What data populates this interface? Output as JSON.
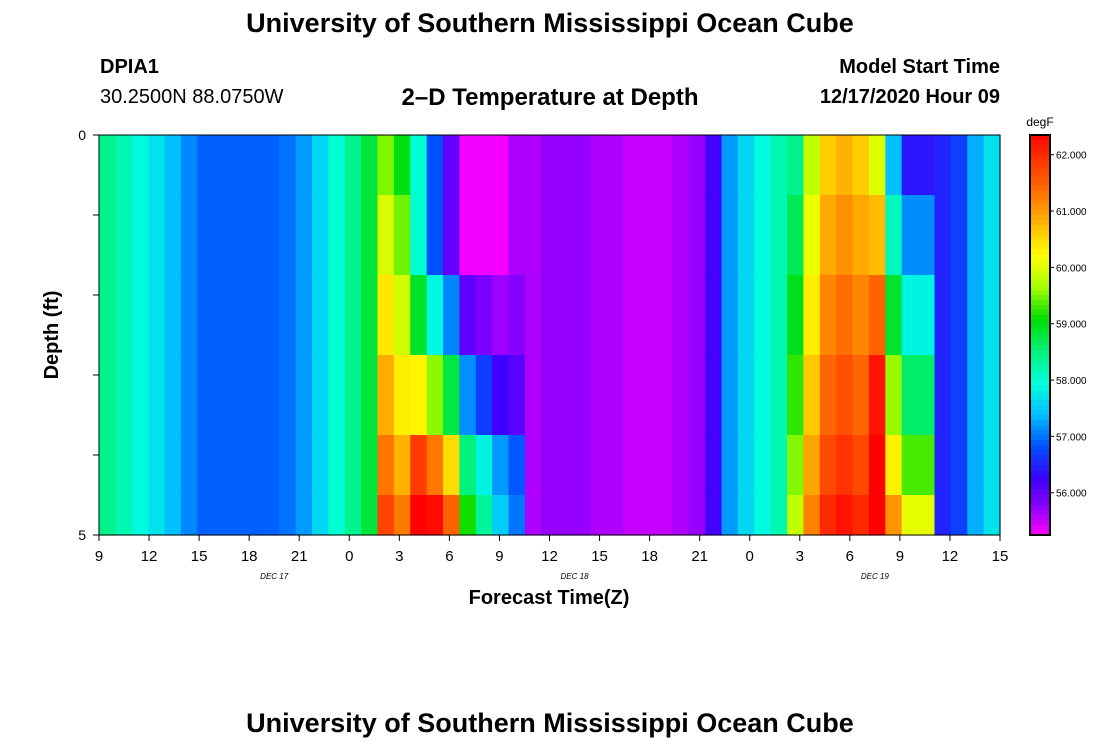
{
  "header": {
    "title": "University of Southern Mississippi Ocean Cube",
    "station": "DPIA1",
    "coordinates": "30.2500N 88.0750W",
    "model_start_label": "Model Start Time",
    "model_start_value": "12/17/2020 Hour 09"
  },
  "footer": {
    "title": "University of Southern Mississippi Ocean Cube"
  },
  "chart_data": {
    "type": "heatmap",
    "title": "2–D Temperature at Depth",
    "xlabel": "Forecast Time(Z)",
    "ylabel": "Depth (ft)",
    "colorbar_unit": "degF",
    "x_ticks": [
      "9",
      "12",
      "15",
      "18",
      "21",
      "0",
      "3",
      "6",
      "9",
      "12",
      "15",
      "18",
      "21",
      "0",
      "3",
      "6",
      "9",
      "12",
      "15"
    ],
    "x_day_labels": [
      {
        "label": "DEC 17",
        "after_tick": 3
      },
      {
        "label": "DEC 18",
        "after_tick": 9
      },
      {
        "label": "DEC 19",
        "after_tick": 15
      }
    ],
    "y_labels": [
      {
        "value": 0,
        "label": "0"
      },
      {
        "value": 5,
        "label": "5"
      }
    ],
    "y_range": [
      0,
      5
    ],
    "x_range_hours": [
      0,
      54
    ],
    "colorbar_ticks": [
      "62.000",
      "61.000",
      "60.000",
      "59.000",
      "58.000",
      "57.000",
      "56.000"
    ],
    "colorbar_range": [
      55.25,
      62.35
    ],
    "depth_layers": [
      0.25,
      1.25,
      2.25,
      3.25,
      4.25,
      4.75
    ],
    "hours": [
      0,
      1,
      2,
      3,
      4,
      5,
      6,
      7,
      8,
      9,
      10,
      11,
      12,
      13,
      14,
      15,
      16,
      17,
      18,
      19,
      20,
      21,
      22,
      23,
      24,
      25,
      26,
      27,
      28,
      29,
      30,
      31,
      32,
      33,
      34,
      35,
      36,
      37,
      38,
      39,
      40,
      41,
      42,
      43,
      44,
      45,
      46,
      47,
      48,
      49,
      50,
      51,
      52,
      53,
      54
    ],
    "grid": false
  }
}
